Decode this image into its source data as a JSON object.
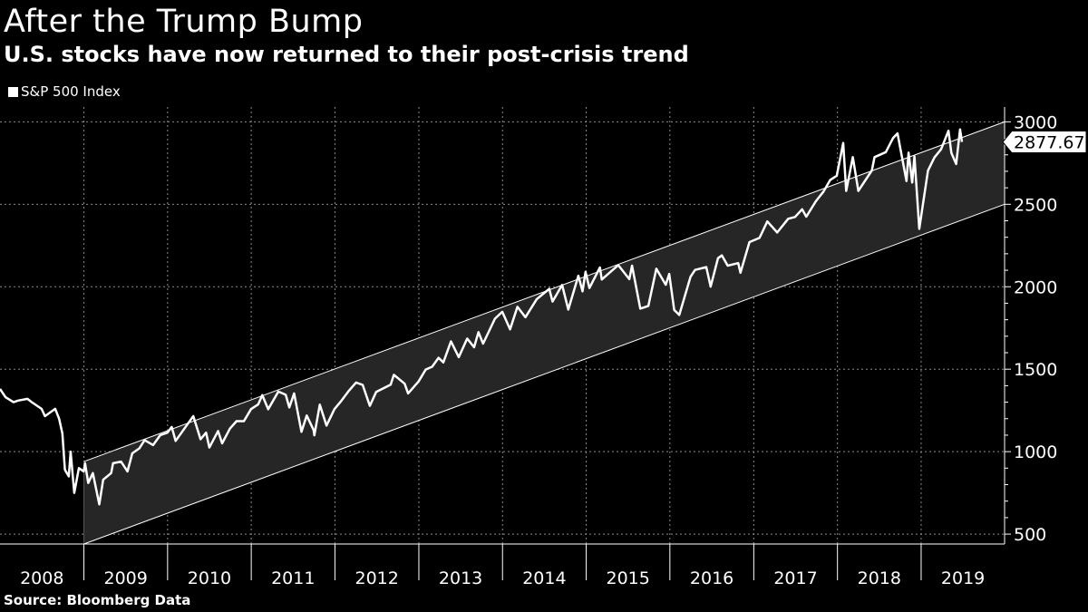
{
  "chart_data": {
    "type": "line",
    "title": "After the Trump Bump",
    "subtitle": "U.S. stocks have now returned to their post-crisis trend",
    "source": "Source: Bloomberg Data",
    "series": [
      {
        "name": "S&P 500 Index",
        "color": "#ffffff",
        "last_value_label": "2877.67",
        "points": [
          [
            "2008-01-01",
            1380
          ],
          [
            "2008-01-25",
            1330
          ],
          [
            "2008-02-29",
            1300
          ],
          [
            "2008-03-20",
            1310
          ],
          [
            "2008-04-30",
            1320
          ],
          [
            "2008-05-19",
            1300
          ],
          [
            "2008-06-30",
            1260
          ],
          [
            "2008-07-15",
            1215
          ],
          [
            "2008-08-29",
            1260
          ],
          [
            "2008-09-15",
            1200
          ],
          [
            "2008-09-29",
            1110
          ],
          [
            "2008-10-10",
            890
          ],
          [
            "2008-10-27",
            850
          ],
          [
            "2008-11-04",
            1000
          ],
          [
            "2008-11-20",
            750
          ],
          [
            "2008-12-10",
            900
          ],
          [
            "2008-12-31",
            880
          ],
          [
            "2009-01-06",
            930
          ],
          [
            "2009-01-20",
            810
          ],
          [
            "2009-02-09",
            870
          ],
          [
            "2009-03-09",
            680
          ],
          [
            "2009-03-26",
            830
          ],
          [
            "2009-04-30",
            870
          ],
          [
            "2009-05-08",
            930
          ],
          [
            "2009-06-12",
            940
          ],
          [
            "2009-07-10",
            880
          ],
          [
            "2009-07-31",
            990
          ],
          [
            "2009-08-31",
            1020
          ],
          [
            "2009-09-23",
            1070
          ],
          [
            "2009-10-30",
            1040
          ],
          [
            "2009-11-30",
            1100
          ],
          [
            "2009-12-31",
            1115
          ],
          [
            "2010-01-19",
            1150
          ],
          [
            "2010-02-05",
            1065
          ],
          [
            "2010-03-31",
            1170
          ],
          [
            "2010-04-23",
            1215
          ],
          [
            "2010-05-25",
            1075
          ],
          [
            "2010-06-18",
            1115
          ],
          [
            "2010-07-02",
            1025
          ],
          [
            "2010-08-09",
            1125
          ],
          [
            "2010-08-27",
            1050
          ],
          [
            "2010-09-30",
            1140
          ],
          [
            "2010-10-29",
            1185
          ],
          [
            "2010-11-30",
            1185
          ],
          [
            "2010-12-31",
            1258
          ],
          [
            "2011-01-31",
            1286
          ],
          [
            "2011-02-18",
            1343
          ],
          [
            "2011-03-16",
            1257
          ],
          [
            "2011-04-29",
            1364
          ],
          [
            "2011-05-31",
            1345
          ],
          [
            "2011-06-16",
            1268
          ],
          [
            "2011-07-07",
            1353
          ],
          [
            "2011-08-08",
            1120
          ],
          [
            "2011-08-31",
            1219
          ],
          [
            "2011-09-30",
            1131
          ],
          [
            "2011-10-03",
            1099
          ],
          [
            "2011-10-27",
            1285
          ],
          [
            "2011-11-25",
            1158
          ],
          [
            "2011-12-30",
            1258
          ],
          [
            "2012-01-31",
            1312
          ],
          [
            "2012-02-29",
            1366
          ],
          [
            "2012-04-02",
            1419
          ],
          [
            "2012-05-01",
            1405
          ],
          [
            "2012-06-01",
            1278
          ],
          [
            "2012-06-29",
            1362
          ],
          [
            "2012-08-31",
            1406
          ],
          [
            "2012-09-14",
            1466
          ],
          [
            "2012-10-31",
            1412
          ],
          [
            "2012-11-15",
            1353
          ],
          [
            "2012-12-31",
            1426
          ],
          [
            "2013-01-31",
            1498
          ],
          [
            "2013-02-28",
            1515
          ],
          [
            "2013-03-28",
            1569
          ],
          [
            "2013-04-18",
            1541
          ],
          [
            "2013-05-21",
            1669
          ],
          [
            "2013-06-24",
            1573
          ],
          [
            "2013-07-31",
            1686
          ],
          [
            "2013-08-30",
            1633
          ],
          [
            "2013-09-18",
            1725
          ],
          [
            "2013-10-08",
            1655
          ],
          [
            "2013-11-29",
            1806
          ],
          [
            "2013-12-31",
            1848
          ],
          [
            "2014-02-03",
            1742
          ],
          [
            "2014-03-07",
            1878
          ],
          [
            "2014-04-11",
            1815
          ],
          [
            "2014-05-30",
            1924
          ],
          [
            "2014-06-30",
            1960
          ],
          [
            "2014-07-24",
            1987
          ],
          [
            "2014-08-07",
            1910
          ],
          [
            "2014-09-18",
            2011
          ],
          [
            "2014-10-15",
            1862
          ],
          [
            "2014-11-28",
            2067
          ],
          [
            "2014-12-16",
            1972
          ],
          [
            "2014-12-29",
            2090
          ],
          [
            "2015-01-15",
            1992
          ],
          [
            "2015-03-02",
            2117
          ],
          [
            "2015-03-10",
            2044
          ],
          [
            "2015-05-21",
            2131
          ],
          [
            "2015-07-08",
            2046
          ],
          [
            "2015-07-20",
            2128
          ],
          [
            "2015-08-25",
            1867
          ],
          [
            "2015-09-29",
            1884
          ],
          [
            "2015-11-03",
            2109
          ],
          [
            "2015-12-14",
            2012
          ],
          [
            "2015-12-29",
            2078
          ],
          [
            "2016-01-20",
            1859
          ],
          [
            "2016-02-11",
            1829
          ],
          [
            "2016-03-31",
            2060
          ],
          [
            "2016-04-20",
            2102
          ],
          [
            "2016-06-08",
            2119
          ],
          [
            "2016-06-27",
            2001
          ],
          [
            "2016-07-29",
            2173
          ],
          [
            "2016-08-15",
            2190
          ],
          [
            "2016-09-09",
            2128
          ],
          [
            "2016-10-25",
            2143
          ],
          [
            "2016-11-04",
            2085
          ],
          [
            "2016-12-13",
            2271
          ],
          [
            "2017-01-26",
            2296
          ],
          [
            "2017-03-01",
            2396
          ],
          [
            "2017-04-13",
            2329
          ],
          [
            "2017-05-31",
            2412
          ],
          [
            "2017-06-30",
            2423
          ],
          [
            "2017-07-31",
            2470
          ],
          [
            "2017-08-18",
            2425
          ],
          [
            "2017-09-29",
            2519
          ],
          [
            "2017-10-31",
            2575
          ],
          [
            "2017-11-30",
            2647
          ],
          [
            "2017-12-29",
            2673
          ],
          [
            "2018-01-26",
            2872
          ],
          [
            "2018-02-08",
            2581
          ],
          [
            "2018-03-09",
            2786
          ],
          [
            "2018-04-02",
            2581
          ],
          [
            "2018-05-31",
            2705
          ],
          [
            "2018-06-12",
            2786
          ],
          [
            "2018-07-31",
            2816
          ],
          [
            "2018-08-31",
            2901
          ],
          [
            "2018-09-20",
            2930
          ],
          [
            "2018-10-29",
            2641
          ],
          [
            "2018-11-07",
            2813
          ],
          [
            "2018-11-23",
            2632
          ],
          [
            "2018-12-03",
            2790
          ],
          [
            "2018-12-24",
            2351
          ],
          [
            "2019-01-31",
            2704
          ],
          [
            "2019-02-28",
            2784
          ],
          [
            "2019-03-29",
            2834
          ],
          [
            "2019-04-30",
            2946
          ],
          [
            "2019-05-13",
            2812
          ],
          [
            "2019-06-03",
            2744
          ],
          [
            "2019-06-20",
            2954
          ],
          [
            "2019-06-28",
            2878
          ]
        ]
      }
    ],
    "channel": {
      "upper_start": [
        "2009-01-01",
        940
      ],
      "upper_end": [
        "2019-12-31",
        3000
      ],
      "lower_start": [
        "2009-01-01",
        440
      ],
      "lower_end": [
        "2019-12-31",
        2500
      ],
      "fill_color": "#262626",
      "line_color": "#ffffff"
    },
    "x_tick_labels": [
      "2008",
      "2009",
      "2010",
      "2011",
      "2012",
      "2013",
      "2014",
      "2015",
      "2016",
      "2017",
      "2018",
      "2019"
    ],
    "xlim": [
      "2008-01-01",
      "2019-12-31"
    ],
    "y_ticks": [
      500,
      1000,
      1500,
      2000,
      2500,
      3000
    ],
    "ylim": [
      440,
      3090
    ],
    "y_axis_side": "right",
    "grid": true,
    "legend_position": "top-left",
    "background_color": "#000000",
    "text_color": "#ffffff"
  }
}
